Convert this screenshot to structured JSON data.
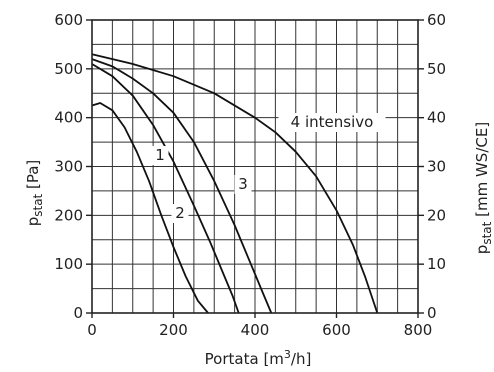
{
  "chart_data": {
    "type": "line",
    "title": "",
    "xlabel": {
      "base": "Portata [m",
      "sup": "3",
      "rest": "/h]"
    },
    "ylabel_left": {
      "base": "p",
      "sub": "stat",
      "rest": " [Pa]"
    },
    "ylabel_right": {
      "base": "p",
      "sub": "stat",
      "rest": " [mm WS/CE]"
    },
    "xlim": [
      0,
      800
    ],
    "ylim": [
      0,
      600
    ],
    "ylim_right": [
      0,
      60
    ],
    "grid": true,
    "x_ticks": [
      0,
      200,
      400,
      600,
      800
    ],
    "y_ticks": [
      0,
      100,
      200,
      300,
      400,
      500,
      600
    ],
    "y_ticks_right": [
      0,
      10,
      20,
      30,
      40,
      50,
      60
    ],
    "series": [
      {
        "name": "1",
        "x": [
          0,
          20,
          50,
          80,
          110,
          140,
          170,
          200,
          230,
          260,
          285
        ],
        "y": [
          425,
          430,
          415,
          380,
          330,
          270,
          200,
          135,
          75,
          25,
          0
        ]
      },
      {
        "name": "2",
        "x": [
          0,
          50,
          100,
          150,
          200,
          250,
          290,
          320,
          345,
          360
        ],
        "y": [
          510,
          485,
          445,
          385,
          310,
          220,
          145,
          85,
          35,
          0
        ]
      },
      {
        "name": "3",
        "x": [
          0,
          50,
          100,
          150,
          200,
          250,
          300,
          350,
          390,
          420,
          440
        ],
        "y": [
          520,
          505,
          480,
          450,
          410,
          350,
          270,
          180,
          100,
          40,
          0
        ]
      },
      {
        "name": "4 intensivo",
        "x": [
          0,
          100,
          200,
          300,
          400,
          450,
          500,
          550,
          600,
          640,
          670,
          700
        ],
        "y": [
          530,
          510,
          485,
          450,
          400,
          370,
          330,
          280,
          210,
          140,
          75,
          0
        ]
      }
    ]
  }
}
